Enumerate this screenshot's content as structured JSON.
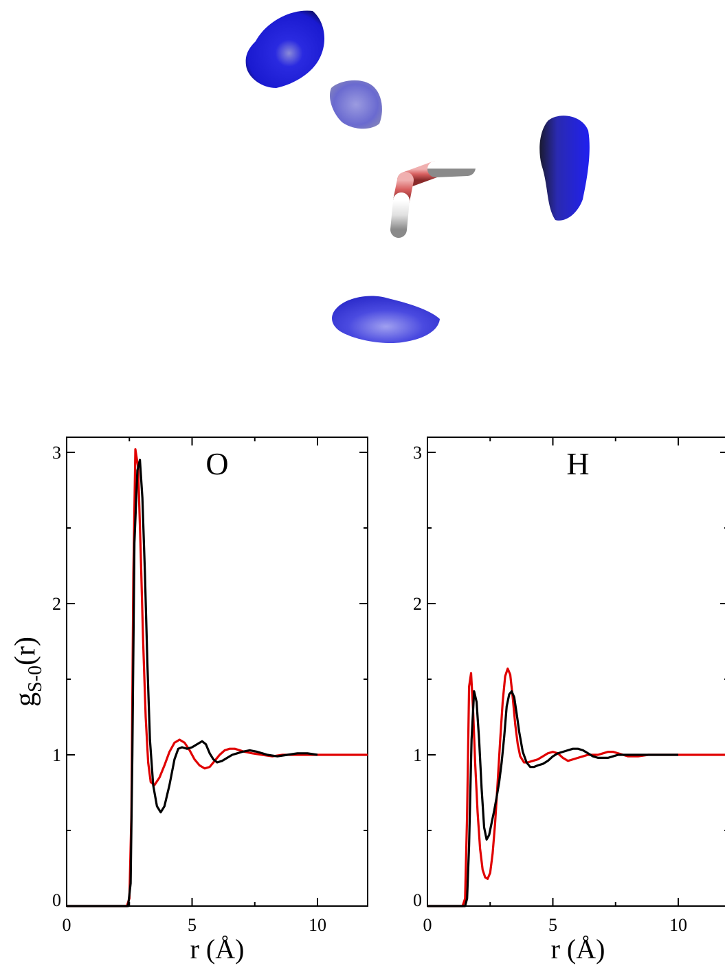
{
  "chart_data": [
    {
      "type": "line",
      "title": "O",
      "xlabel": "r (Å)",
      "ylabel_main": "g",
      "ylabel_sub": "S-0",
      "ylabel_tail": "(r)",
      "xlim": [
        0,
        12
      ],
      "ylim": [
        0,
        3.1
      ],
      "xticks": [
        0,
        5,
        10
      ],
      "yticks": [
        0,
        1,
        2,
        3
      ],
      "grid": false,
      "series": [
        {
          "color": "#e00000",
          "x": [
            0,
            2.4,
            2.5,
            2.58,
            2.66,
            2.74,
            2.85,
            2.95,
            3.05,
            3.15,
            3.25,
            3.35,
            3.5,
            3.7,
            3.9,
            4.1,
            4.3,
            4.5,
            4.7,
            4.9,
            5.1,
            5.3,
            5.5,
            5.7,
            5.9,
            6.1,
            6.3,
            6.5,
            6.7,
            6.9,
            7.1,
            7.4,
            7.8,
            8.2,
            8.6,
            9.0,
            9.4,
            9.8,
            10.2,
            10.6,
            11.0,
            11.5,
            12.0
          ],
          "y": [
            0,
            0,
            0.05,
            0.6,
            2.2,
            3.02,
            2.9,
            2.35,
            1.75,
            1.25,
            0.95,
            0.82,
            0.8,
            0.85,
            0.93,
            1.02,
            1.08,
            1.1,
            1.08,
            1.03,
            0.97,
            0.93,
            0.91,
            0.92,
            0.96,
            1.0,
            1.03,
            1.04,
            1.04,
            1.03,
            1.02,
            1.01,
            1.0,
            0.99,
            1.0,
            1.0,
            1.0,
            1.0,
            1.0,
            1.0,
            1.0,
            1.0,
            1.0
          ]
        },
        {
          "color": "#000000",
          "x": [
            0,
            2.45,
            2.55,
            2.62,
            2.7,
            2.82,
            2.92,
            3.02,
            3.12,
            3.22,
            3.32,
            3.45,
            3.6,
            3.75,
            3.9,
            4.1,
            4.3,
            4.45,
            4.6,
            4.8,
            5.0,
            5.2,
            5.4,
            5.55,
            5.7,
            5.85,
            6.0,
            6.2,
            6.4,
            6.6,
            6.8,
            7.0,
            7.3,
            7.6,
            8.0,
            8.4,
            8.8,
            9.2,
            9.6,
            10.0
          ],
          "y": [
            0,
            0,
            0.15,
            1.0,
            2.4,
            2.88,
            2.95,
            2.7,
            2.2,
            1.6,
            1.1,
            0.8,
            0.66,
            0.62,
            0.66,
            0.8,
            0.97,
            1.04,
            1.05,
            1.04,
            1.05,
            1.07,
            1.09,
            1.07,
            1.01,
            0.97,
            0.95,
            0.96,
            0.98,
            1.0,
            1.01,
            1.02,
            1.03,
            1.02,
            1.0,
            0.99,
            1.0,
            1.01,
            1.01,
            1.0
          ]
        }
      ]
    },
    {
      "type": "line",
      "title": "H",
      "xlabel": "r (Å)",
      "xlim": [
        0,
        12
      ],
      "ylim": [
        0,
        3.1
      ],
      "xticks": [
        0,
        5,
        10
      ],
      "yticks": [
        0,
        1,
        2,
        3
      ],
      "grid": false,
      "series": [
        {
          "color": "#e00000",
          "x": [
            0,
            1.4,
            1.5,
            1.58,
            1.66,
            1.74,
            1.82,
            1.9,
            2.0,
            2.1,
            2.2,
            2.3,
            2.4,
            2.5,
            2.6,
            2.7,
            2.8,
            2.9,
            3.0,
            3.1,
            3.2,
            3.3,
            3.4,
            3.5,
            3.6,
            3.7,
            3.85,
            4.0,
            4.2,
            4.4,
            4.6,
            4.8,
            5.0,
            5.2,
            5.4,
            5.6,
            5.8,
            6.0,
            6.2,
            6.4,
            6.6,
            6.8,
            7.0,
            7.2,
            7.4,
            7.6,
            7.8,
            8.0,
            8.4,
            8.8,
            9.2,
            9.6,
            10.0,
            11.0,
            12.0
          ],
          "y": [
            0,
            0,
            0.05,
            0.6,
            1.45,
            1.54,
            1.3,
            0.95,
            0.62,
            0.38,
            0.24,
            0.19,
            0.18,
            0.22,
            0.35,
            0.55,
            0.82,
            1.1,
            1.35,
            1.52,
            1.57,
            1.53,
            1.38,
            1.2,
            1.07,
            0.99,
            0.95,
            0.95,
            0.96,
            0.97,
            0.99,
            1.01,
            1.02,
            1.01,
            0.98,
            0.96,
            0.97,
            0.98,
            0.99,
            1.0,
            1.0,
            1.0,
            1.01,
            1.02,
            1.02,
            1.01,
            1.0,
            0.99,
            0.99,
            1.0,
            1.0,
            1.0,
            1.0,
            1.0,
            1.0
          ]
        },
        {
          "color": "#000000",
          "x": [
            0,
            1.5,
            1.58,
            1.66,
            1.76,
            1.86,
            1.96,
            2.06,
            2.16,
            2.26,
            2.36,
            2.46,
            2.56,
            2.66,
            2.76,
            2.86,
            2.96,
            3.06,
            3.16,
            3.26,
            3.36,
            3.46,
            3.56,
            3.66,
            3.8,
            3.95,
            4.1,
            4.25,
            4.4,
            4.6,
            4.8,
            5.0,
            5.2,
            5.4,
            5.6,
            5.8,
            6.0,
            6.2,
            6.4,
            6.6,
            6.8,
            7.0,
            7.2,
            7.4,
            7.6,
            7.8,
            8.0,
            8.5,
            9.0,
            9.5,
            10.0
          ],
          "y": [
            0,
            0,
            0.05,
            0.4,
            1.1,
            1.42,
            1.35,
            1.1,
            0.78,
            0.52,
            0.44,
            0.47,
            0.55,
            0.63,
            0.72,
            0.82,
            0.95,
            1.12,
            1.32,
            1.4,
            1.42,
            1.38,
            1.27,
            1.15,
            1.02,
            0.95,
            0.92,
            0.92,
            0.93,
            0.94,
            0.96,
            0.99,
            1.01,
            1.02,
            1.03,
            1.04,
            1.04,
            1.03,
            1.01,
            0.99,
            0.98,
            0.98,
            0.98,
            0.99,
            1.0,
            1.0,
            1.0,
            1.0,
            1.0,
            1.0,
            1.0
          ]
        }
      ]
    }
  ]
}
